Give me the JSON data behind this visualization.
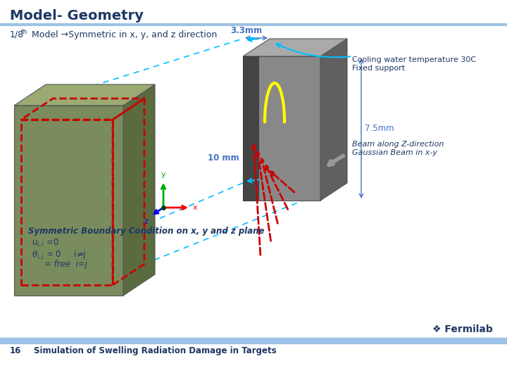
{
  "title": "Model- Geometry",
  "subtitle": "1/8",
  "subtitle_sup": "th",
  "subtitle_rest": "  Model →Symmetric in x, y, and z direction",
  "annotation_33mm": "3.3mm",
  "annotation_75mm": "7.5mm",
  "annotation_10mm": "10 mm",
  "annotation_cooling": "Cooling water temperature 30C\nFixed support",
  "annotation_beam": "Beam along Z-direction\nGaussian Beam in x-y",
  "annotation_symm": "Symmetric Boundary Condition on x, y and z plane",
  "footer_num": "16",
  "footer_text": "Simulation of Swelling Radiation Damage in Targets",
  "fermilab_text": "❖ Fermilab",
  "bg_color": "#ffffff",
  "title_color": "#1F3864",
  "header_line_color": "#9DC3E6",
  "footer_line_color": "#9DC3E6",
  "footer_text_color": "#1F3864",
  "annotation_color": "#1F3864",
  "dim_color": "#4472C4",
  "cyan_color": "#00BFFF",
  "red_color": "#CC0000",
  "green_box": "#7a8c5e",
  "green_side": "#5a6b40",
  "green_top": "#9aaa72",
  "gray_box": "#888888",
  "gray_side": "#606060",
  "gray_top": "#aaaaaa",
  "dark_strip": "#444444"
}
